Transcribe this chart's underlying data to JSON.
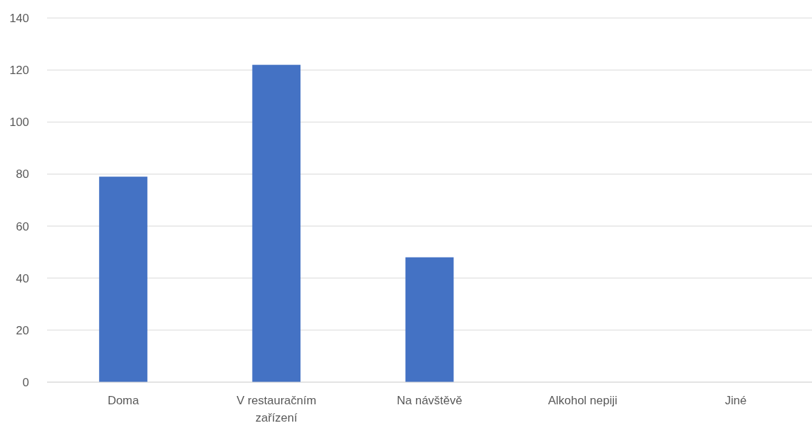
{
  "chart_data": {
    "type": "bar",
    "categories": [
      "Doma",
      "V restauračním zařízení",
      "Na návštěvě",
      "Alkohol nepiji",
      "Jiné"
    ],
    "values": [
      79,
      122,
      48,
      0,
      0
    ],
    "color": "#4472c4",
    "ylim": [
      0,
      140
    ],
    "yticks": [
      0,
      20,
      40,
      60,
      80,
      100,
      120,
      140
    ],
    "grid": "y"
  }
}
